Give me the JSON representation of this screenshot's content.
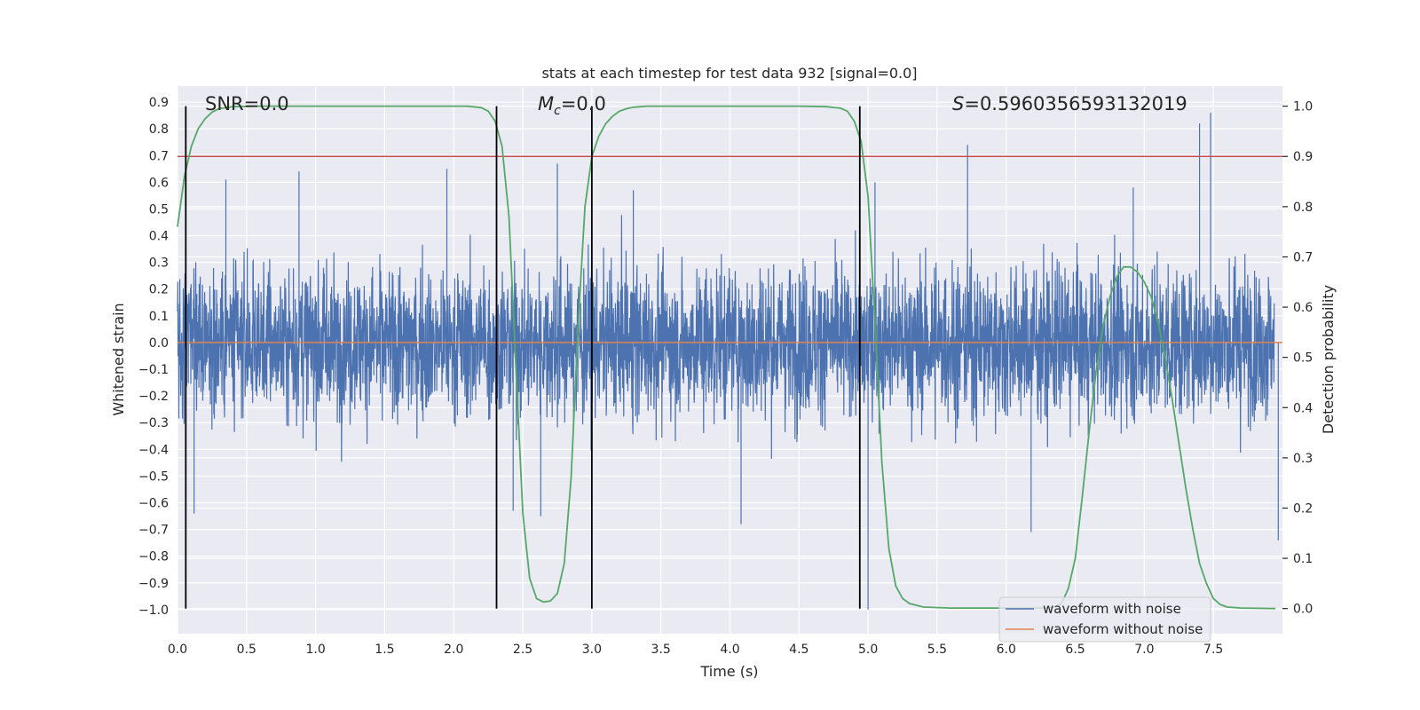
{
  "chart_data": {
    "type": "line",
    "title": "stats at each timestep for test data 932 [signal=0.0]",
    "xlabel": "Time (s)",
    "ylabel_left": "Whitened strain",
    "ylabel_right": "Detection probability",
    "xlim": [
      0.0,
      8.0
    ],
    "ylim_left": [
      -1.09,
      0.96
    ],
    "ylim_right": [
      -0.05,
      1.04
    ],
    "x_ticks": [
      "0.0",
      "0.5",
      "1.0",
      "1.5",
      "2.0",
      "2.5",
      "3.0",
      "3.5",
      "4.0",
      "4.5",
      "5.0",
      "5.5",
      "6.0",
      "6.5",
      "7.0",
      "7.5"
    ],
    "y_ticks_left": [
      "−1.0",
      "−0.9",
      "−0.8",
      "−0.7",
      "−0.6",
      "−0.5",
      "−0.4",
      "−0.3",
      "−0.2",
      "−0.1",
      "0.0",
      "0.1",
      "0.2",
      "0.3",
      "0.4",
      "0.5",
      "0.6",
      "0.7",
      "0.8",
      "0.9"
    ],
    "y_ticks_right": [
      "0.0",
      "0.1",
      "0.2",
      "0.3",
      "0.4",
      "0.5",
      "0.6",
      "0.7",
      "0.8",
      "0.9",
      "1.0"
    ],
    "grid": true,
    "legend_position": "lower-right",
    "annotations": {
      "snr": "SNR=0.0",
      "mc_symbol": "M",
      "mc_sub": "c",
      "mc_value": "=0.0",
      "s_symbol": "S",
      "s_value": "=0.5960356593132019"
    },
    "series": [
      {
        "name": "waveform with noise",
        "axis": "left",
        "color": "#4c72b0",
        "description_type": "noise",
        "noise_std": 0.14,
        "spikes": [
          {
            "x": 0.12,
            "y": -0.64
          },
          {
            "x": 0.35,
            "y": 0.61
          },
          {
            "x": 0.88,
            "y": 0.64
          },
          {
            "x": 1.95,
            "y": 0.65
          },
          {
            "x": 2.43,
            "y": -0.63
          },
          {
            "x": 2.75,
            "y": 0.67
          },
          {
            "x": 2.63,
            "y": -0.65
          },
          {
            "x": 3.3,
            "y": 0.57
          },
          {
            "x": 4.08,
            "y": -0.68
          },
          {
            "x": 5.0,
            "y": -1.0
          },
          {
            "x": 5.72,
            "y": 0.74
          },
          {
            "x": 6.18,
            "y": -0.71
          },
          {
            "x": 7.4,
            "y": 0.82
          },
          {
            "x": 7.48,
            "y": 0.86
          },
          {
            "x": 7.97,
            "y": -0.74
          },
          {
            "x": 5.05,
            "y": 0.6
          },
          {
            "x": 6.92,
            "y": 0.58
          }
        ]
      },
      {
        "name": "waveform without noise",
        "axis": "left",
        "color": "#dd8452",
        "x": [
          0.0,
          8.0
        ],
        "y": [
          0.0,
          0.0
        ]
      },
      {
        "name": "detection probability",
        "axis": "right",
        "color": "#55a868",
        "x": [
          0.0,
          0.05,
          0.1,
          0.15,
          0.2,
          0.25,
          0.3,
          0.4,
          0.6,
          1.0,
          1.5,
          2.0,
          2.1,
          2.2,
          2.25,
          2.3,
          2.35,
          2.4,
          2.45,
          2.5,
          2.55,
          2.6,
          2.65,
          2.7,
          2.75,
          2.8,
          2.85,
          2.9,
          2.95,
          3.0,
          3.05,
          3.1,
          3.15,
          3.2,
          3.25,
          3.3,
          3.4,
          3.6,
          4.0,
          4.5,
          4.7,
          4.8,
          4.85,
          4.9,
          4.95,
          5.0,
          5.05,
          5.1,
          5.15,
          5.2,
          5.25,
          5.3,
          5.4,
          5.6,
          6.0,
          6.3,
          6.35,
          6.4,
          6.45,
          6.5,
          6.55,
          6.6,
          6.65,
          6.7,
          6.75,
          6.8,
          6.85,
          6.9,
          6.95,
          7.0,
          7.05,
          7.1,
          7.15,
          7.2,
          7.25,
          7.3,
          7.35,
          7.4,
          7.45,
          7.5,
          7.55,
          7.6,
          7.7,
          7.95
        ],
        "y": [
          0.76,
          0.86,
          0.92,
          0.955,
          0.975,
          0.988,
          0.995,
          0.999,
          1.0,
          1.0,
          1.0,
          1.0,
          1.0,
          0.997,
          0.99,
          0.97,
          0.92,
          0.78,
          0.48,
          0.19,
          0.06,
          0.02,
          0.013,
          0.015,
          0.03,
          0.09,
          0.26,
          0.56,
          0.8,
          0.9,
          0.94,
          0.965,
          0.98,
          0.99,
          0.995,
          0.998,
          1.0,
          1.0,
          1.0,
          1.0,
          0.999,
          0.996,
          0.99,
          0.97,
          0.93,
          0.82,
          0.57,
          0.29,
          0.12,
          0.045,
          0.02,
          0.01,
          0.003,
          0.001,
          0.001,
          0.001,
          0.003,
          0.01,
          0.04,
          0.1,
          0.22,
          0.35,
          0.47,
          0.56,
          0.62,
          0.66,
          0.68,
          0.68,
          0.67,
          0.65,
          0.62,
          0.57,
          0.5,
          0.42,
          0.33,
          0.24,
          0.16,
          0.09,
          0.05,
          0.02,
          0.008,
          0.003,
          0.001,
          0.0
        ]
      },
      {
        "name": "threshold",
        "axis": "right",
        "color": "#c44e52",
        "x": [
          0.0,
          8.0
        ],
        "y": [
          0.9,
          0.9
        ]
      }
    ],
    "vertical_lines": {
      "axis": "right",
      "color": "#000000",
      "y_range": [
        0.0,
        1.0
      ],
      "x": [
        0.06,
        2.31,
        3.0,
        4.94
      ]
    }
  }
}
